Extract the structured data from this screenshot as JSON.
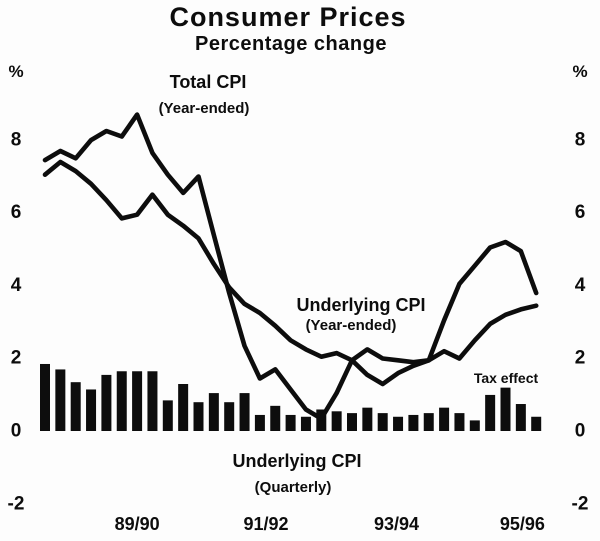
{
  "title": "Consumer Prices",
  "subtitle": "Percentage change",
  "axis": {
    "unit_left": "%",
    "unit_right": "%",
    "yticks": [
      8,
      6,
      4,
      2,
      0,
      -2
    ],
    "x_labels": [
      "89/90",
      "91/92",
      "93/94",
      "95/96"
    ]
  },
  "annotations": {
    "total_cpi": {
      "line1": "Total CPI",
      "line2": "(Year-ended)"
    },
    "underlying_ye": {
      "line1": "Underlying CPI",
      "line2": "(Year-ended)"
    },
    "underlying_q": {
      "line1": "Underlying CPI",
      "line2": "(Quarterly)"
    },
    "tax_effect": "Tax effect"
  },
  "colors": {
    "ink": "#0d0d0d",
    "background": "#fdfdfd"
  },
  "chart_data": {
    "type": "mixed",
    "title": "Consumer Prices",
    "subtitle": "Percentage change",
    "unit": "%",
    "ylim": [
      -2,
      9.6
    ],
    "yticks": [
      8,
      6,
      4,
      2,
      0,
      -2
    ],
    "grid": false,
    "x_axis": {
      "labels": [
        "89/90",
        "91/92",
        "93/94",
        "95/96"
      ],
      "label_quarter_index": [
        6.0,
        14.4,
        22.9,
        31.1
      ]
    },
    "quarters": [
      "1988Q2",
      "1988Q3",
      "1988Q4",
      "1989Q1",
      "1989Q2",
      "1989Q3",
      "1989Q4",
      "1990Q1",
      "1990Q2",
      "1990Q3",
      "1990Q4",
      "1991Q1",
      "1991Q2",
      "1991Q3",
      "1991Q4",
      "1992Q1",
      "1992Q2",
      "1992Q3",
      "1992Q4",
      "1993Q1",
      "1993Q2",
      "1993Q3",
      "1993Q4",
      "1994Q1",
      "1994Q2",
      "1994Q3",
      "1994Q4",
      "1995Q1",
      "1995Q2",
      "1995Q3",
      "1995Q4",
      "1996Q1",
      "1996Q2"
    ],
    "series": [
      {
        "name": "Total CPI (Year-ended)",
        "type": "line",
        "values": [
          7.4,
          7.65,
          7.45,
          7.95,
          8.2,
          8.05,
          8.65,
          7.6,
          7.0,
          6.5,
          6.95,
          5.35,
          3.75,
          2.3,
          1.4,
          1.65,
          1.1,
          0.55,
          0.3,
          1.0,
          1.9,
          1.5,
          1.25,
          1.55,
          1.75,
          1.9,
          3.0,
          4.0,
          4.5,
          5.0,
          5.15,
          4.9,
          3.75
        ]
      },
      {
        "name": "Underlying CPI (Year-ended)",
        "type": "line",
        "values": [
          7.0,
          7.35,
          7.1,
          6.75,
          6.3,
          5.8,
          5.9,
          6.45,
          5.9,
          5.6,
          5.25,
          4.55,
          3.9,
          3.45,
          3.2,
          2.85,
          2.45,
          2.2,
          2.0,
          2.1,
          1.9,
          2.2,
          1.95,
          1.9,
          1.85,
          1.9,
          2.15,
          1.95,
          2.45,
          2.9,
          3.15,
          3.3,
          3.4
        ]
      },
      {
        "name": "Underlying CPI (Quarterly)",
        "type": "bar",
        "values": [
          1.8,
          1.65,
          1.3,
          1.1,
          1.5,
          1.6,
          1.6,
          1.6,
          0.8,
          1.25,
          0.75,
          1.0,
          0.75,
          1.0,
          0.4,
          0.65,
          0.4,
          0.35,
          0.55,
          0.5,
          0.45,
          0.6,
          0.45,
          0.35,
          0.4,
          0.45,
          0.6,
          0.45,
          0.25,
          0.95,
          1.15,
          0.7,
          0.35
        ]
      }
    ]
  }
}
